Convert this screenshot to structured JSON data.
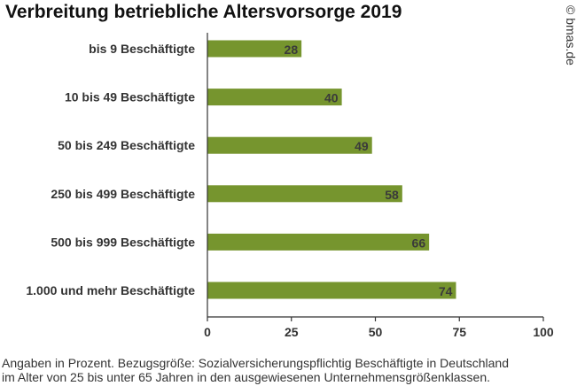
{
  "title": "Verbreitung betriebliche Altersvorsorge 2019",
  "credit": "© bmas.de",
  "footnote": {
    "line1": "Angaben in Prozent. Bezugsgröße: Sozialversicherungspflichtig  Beschäftigte in Deutschland",
    "line2": "im Alter von 25 bis unter 65 Jahren in den ausgewiesenen Unternehmensgrößenklassen."
  },
  "colors": {
    "bar": "#76952e",
    "axis": "#333333"
  },
  "chart_data": {
    "type": "bar",
    "orientation": "horizontal",
    "title": "Verbreitung betriebliche Altersvorsorge 2019",
    "categories": [
      "bis 9 Beschäftigte",
      "10 bis 49 Beschäftigte",
      "50 bis 249 Beschäftigte",
      "250 bis 499 Beschäftigte",
      "500 bis 999 Beschäftigte",
      "1.000 und mehr Beschäftigte"
    ],
    "values": [
      28,
      40,
      49,
      58,
      66,
      74
    ],
    "xlim": [
      0,
      100
    ],
    "xticks": [
      0,
      25,
      50,
      75,
      100
    ],
    "grid": false,
    "data_labels": true
  }
}
